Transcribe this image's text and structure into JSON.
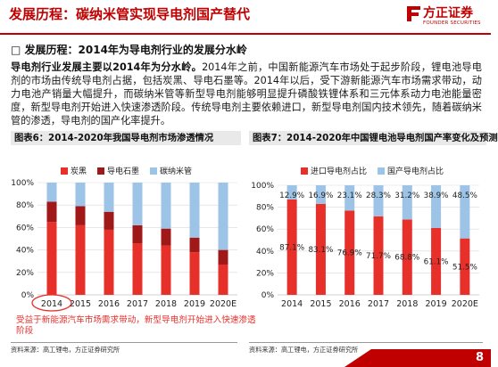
{
  "header": {
    "title": "发展历程：碳纳米管实现导电剂国产替代",
    "logo_cn": "方正证券",
    "logo_en": "FOUNDER SECURITIES"
  },
  "bullet": "□  发展历程：2014年为导电剂行业的发展分水岭",
  "paragraph": {
    "lead": "导电剂行业发展主要以2014年为分水岭。",
    "body": "2014年之前，中国新能源汽车市场处于起步阶段，锂电池导电剂的市场由传统导电剂占据，包括炭黑、导电石墨等。2014年以后，受下游新能源汽车市场需求带动，动力电池产销量大幅提升，而碳纳米管等新型导电剂能够明显提升磷酸铁锂体系和三元体系动力电池能量密度，新型导电剂开始进入快速渗透阶段。传统导电剂主要依赖进口，新型导电剂国内技术领先，随着碳纳米管的渗透，导电剂的国产化率提升。"
  },
  "chart1": {
    "caption": "图表6：2014-2020年我国导电剂市场渗透情况",
    "source": "资料来源：高工锂电，方正证券研究所",
    "highlight_note": "受益于新能源汽车市场需求带动，新型导电剂开始进入快速渗透阶段"
  },
  "chart2": {
    "caption": "图表7：2014-2020年中国锂电池导电剂国产率变化及预测",
    "source": "资料来源：高工锂电，方正证券研究所"
  },
  "page_number": "8",
  "chart_data": [
    {
      "type": "bar",
      "stacked": true,
      "categories": [
        "2014",
        "2015",
        "2016",
        "2017",
        "2018",
        "2019",
        "2020E"
      ],
      "series": [
        {
          "name": "炭黑",
          "color": "#e8302b",
          "values": [
            65,
            62,
            58,
            46,
            44,
            38,
            27
          ]
        },
        {
          "name": "导电石墨",
          "color": "#a01818",
          "values": [
            18,
            17,
            16,
            16,
            15,
            13,
            13
          ]
        },
        {
          "name": "碳纳米管",
          "color": "#9dc3e6",
          "values": [
            17,
            21,
            26,
            38,
            41,
            49,
            60
          ]
        }
      ],
      "ylim": [
        0,
        100
      ],
      "yticks": [
        "0%",
        "20%",
        "40%",
        "60%",
        "80%",
        "100%"
      ],
      "legend": "top"
    },
    {
      "type": "bar",
      "stacked": true,
      "categories": [
        "2014",
        "2015",
        "2016",
        "2017",
        "2018",
        "2019",
        "2020E"
      ],
      "series": [
        {
          "name": "进口导电剂占比",
          "color": "#e8302b",
          "values": [
            87.1,
            83.1,
            76.9,
            71.7,
            68.8,
            61.1,
            51.5
          ],
          "labels": [
            "87.1%",
            "83.1%",
            "76.9%",
            "71.7%",
            "68.8%",
            "61.1%",
            "51.5%"
          ]
        },
        {
          "name": "国产导电剂占比",
          "color": "#9dc3e6",
          "values": [
            12.9,
            16.9,
            23.1,
            28.3,
            31.2,
            38.9,
            48.5
          ],
          "labels": [
            "12.9%",
            "16.9%",
            "23.1%",
            "28.3%",
            "31.2%",
            "38.9%",
            "48.5%"
          ]
        }
      ],
      "ylim": [
        0,
        100
      ],
      "yticks": [
        "0%",
        "20%",
        "40%",
        "60%",
        "80%",
        "100%"
      ],
      "legend": "top"
    }
  ]
}
